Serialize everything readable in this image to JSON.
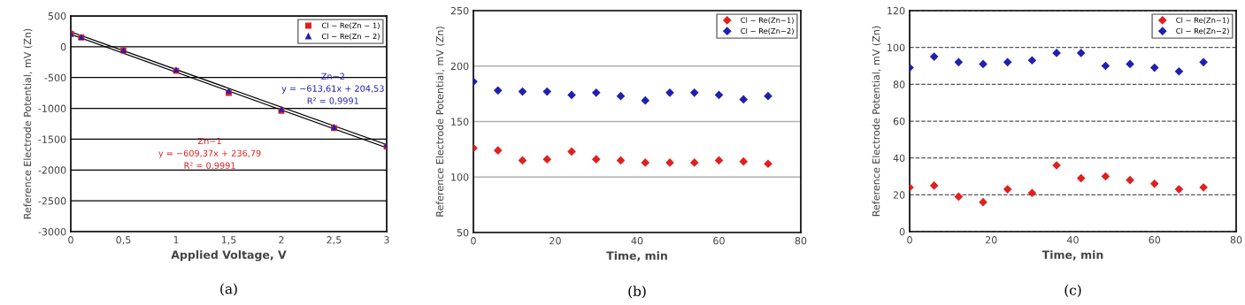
{
  "chart_data": [
    {
      "type": "scatter",
      "xlabel": "Applied Voltage, V",
      "ylabel": "Reference Electrode Potential, mV (Zn)",
      "xlim": [
        0,
        3
      ],
      "ylim": [
        -3000,
        500
      ],
      "xticks": [
        0,
        {
          "value": 0.5,
          "label": "0,5"
        },
        1,
        {
          "value": 1.5,
          "label": "1,5"
        },
        2,
        {
          "value": 2.5,
          "label": "2,5"
        },
        3
      ],
      "yticks": [
        -3000,
        -2500,
        -2000,
        -1500,
        -1000,
        -500,
        0,
        500
      ],
      "grid": "y",
      "legend": "top right",
      "series": [
        {
          "name": "Cl − Re(Zn − 1)",
          "color": "#e02020",
          "marker": "square",
          "x": [
            0,
            0.1,
            0.5,
            1,
            1.5,
            2,
            2.5,
            3
          ],
          "values": [
            210,
            150,
            -60,
            -390,
            -750,
            -1040,
            -1320,
            -1620
          ]
        },
        {
          "name": "Cl − Re(Zn − 2)",
          "color": "#2020b0",
          "marker": "triangle",
          "x": [
            0,
            0.1,
            0.5,
            1,
            1.5,
            2,
            2.5,
            3
          ],
          "values": [
            210,
            160,
            -50,
            -370,
            -710,
            -1010,
            -1300,
            -1590
          ]
        },
        {
          "type": "line",
          "color": "#000000",
          "marker": "none",
          "x": [
            0,
            3
          ],
          "values": [
            240,
            -1590
          ]
        },
        {
          "type": "line",
          "color": "#000000",
          "marker": "none",
          "x": [
            0,
            3
          ],
          "values": [
            200,
            -1640
          ]
        }
      ],
      "annotations": [
        "Zn−1\ny = −609,37x + 236,79\nR² = 0,9991",
        "Zn−2\ny = −613,61x + 204,53\nR² = 0,9991",
        "(a)"
      ]
    },
    {
      "type": "scatter",
      "xlabel": "Time, min",
      "ylabel": "Reference Electrode Potential, mV (Zn)",
      "xlim": [
        0,
        80
      ],
      "ylim": [
        50,
        250
      ],
      "xticks": [
        0,
        20,
        40,
        60,
        80
      ],
      "yticks": [
        50,
        100,
        150,
        200,
        250
      ],
      "grid": "y",
      "legend": "top right",
      "marker": "diamond",
      "x": [
        0,
        6,
        12,
        18,
        24,
        30,
        36,
        42,
        48,
        54,
        60,
        66,
        72
      ],
      "series": [
        {
          "name": "Cl − Re(Zn−1)",
          "color": "#e02020",
          "values": [
            126,
            124,
            115,
            116,
            123,
            116,
            115,
            113,
            113,
            113,
            115,
            114,
            112
          ]
        },
        {
          "name": "Cl − Re(Zn−2)",
          "color": "#2020b0",
          "values": [
            186,
            178,
            177,
            177,
            174,
            176,
            173,
            169,
            176,
            176,
            174,
            170,
            173
          ]
        }
      ],
      "annotations": [
        "(b)"
      ]
    },
    {
      "type": "scatter",
      "xlabel": "Time, min",
      "ylabel": "Reference Electrode Potential, mV (Zn)",
      "xlim": [
        0,
        80
      ],
      "ylim": [
        0,
        120
      ],
      "xticks": [
        0,
        20,
        40,
        60,
        80
      ],
      "yticks": [
        0,
        20,
        40,
        60,
        80,
        100,
        120
      ],
      "grid": "y",
      "legend": "top right",
      "marker": "diamond",
      "x": [
        0,
        6,
        12,
        18,
        24,
        30,
        36,
        42,
        48,
        54,
        60,
        66,
        72
      ],
      "series": [
        {
          "name": "Cl − Re(Zn−1)",
          "color": "#e02020",
          "values": [
            24,
            25,
            19,
            16,
            23,
            21,
            36,
            29,
            30,
            28,
            26,
            23,
            24
          ]
        },
        {
          "name": "Cl − Re(Zn−2)",
          "color": "#2020b0",
          "values": [
            89,
            95,
            92,
            91,
            92,
            93,
            97,
            97,
            90,
            91,
            89,
            87,
            92
          ]
        }
      ],
      "annotations": [
        "(c)"
      ]
    }
  ]
}
